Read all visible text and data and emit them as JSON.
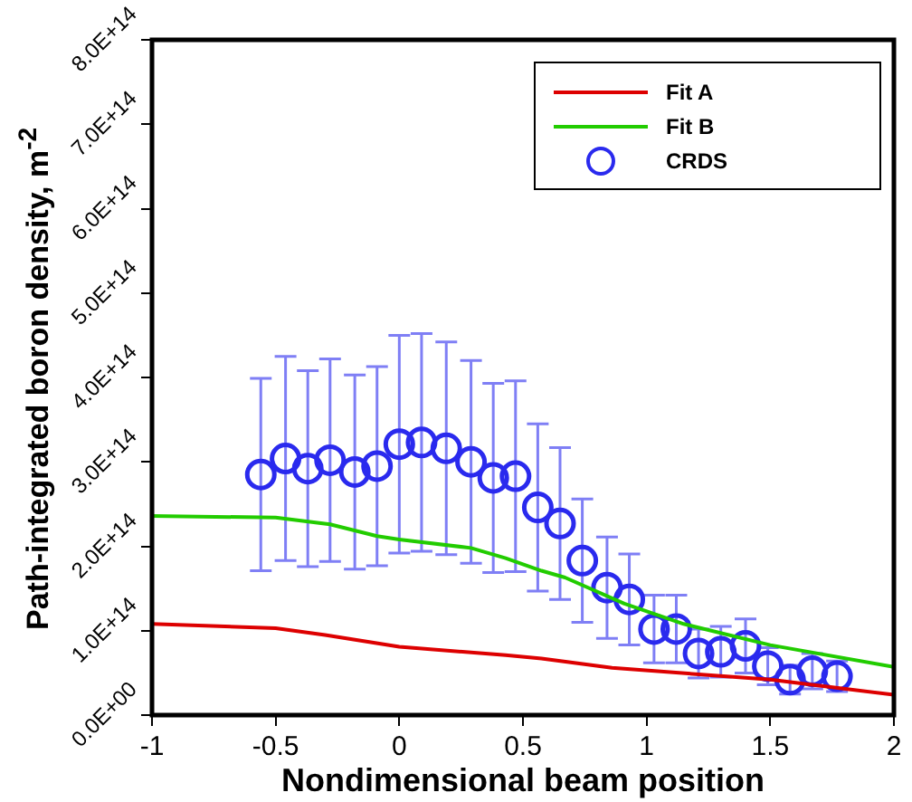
{
  "chart_data": {
    "type": "line",
    "xlabel": "Nondimensional beam position",
    "ylabel": "Path-integrated boron density, m$^{-2}$",
    "xlim": [
      -1,
      2
    ],
    "xticks": [
      -1,
      -0.5,
      0,
      0.5,
      1,
      1.5,
      2
    ],
    "ylim": [
      0,
      800000000000000.0
    ],
    "yticks": [
      {
        "value": 0,
        "label": "0.0E+00"
      },
      {
        "value": 100000000000000.0,
        "label": "1.0E+14"
      },
      {
        "value": 200000000000000.0,
        "label": "2.0E+14"
      },
      {
        "value": 300000000000000.0,
        "label": "3.0E+14"
      },
      {
        "value": 400000000000000.0,
        "label": "4.0E+14"
      },
      {
        "value": 500000000000000.0,
        "label": "5.0E+14"
      },
      {
        "value": 600000000000000.0,
        "label": "6.0E+14"
      },
      {
        "value": 700000000000000.0,
        "label": "7.0E+14"
      },
      {
        "value": 800000000000000.0,
        "label": "8.0E+14"
      }
    ],
    "legend": "top right",
    "series": [
      {
        "name": "Fit A",
        "type": "line",
        "color": "#dd0000",
        "marker": "none",
        "x": [
          -1,
          -0.5,
          -0.3,
          0,
          0.43,
          0.575,
          0.86,
          1.5,
          2
        ],
        "values": [
          108000000000000.0,
          103000000000000.0,
          95000000000000.0,
          81000000000000.0,
          71000000000000.0,
          67000000000000.0,
          56000000000000.0,
          42000000000000.0,
          24000000000000.0
        ]
      },
      {
        "name": "Fit B",
        "type": "line",
        "color": "#22cc00",
        "marker": "none",
        "x": [
          -1,
          -0.5,
          -0.28,
          -0.09,
          0,
          0.29,
          0.43,
          0.575,
          0.67,
          0.91,
          1.15,
          1.5,
          2
        ],
        "values": [
          236000000000000.0,
          234000000000000.0,
          226000000000000.0,
          212000000000000.0,
          208000000000000.0,
          198000000000000.0,
          186000000000000.0,
          171000000000000.0,
          163000000000000.0,
          132000000000000.0,
          108000000000000.0,
          83000000000000.0,
          57000000000000.0
        ]
      },
      {
        "name": "CRDS",
        "type": "scatter",
        "color": "#2a2aee",
        "marker": "circle",
        "x": [
          -0.56,
          -0.46,
          -0.37,
          -0.28,
          -0.18,
          -0.09,
          0,
          0.09,
          0.19,
          0.29,
          0.38,
          0.47,
          0.56,
          0.65,
          0.74,
          0.84,
          0.93,
          1.03,
          1.12,
          1.21,
          1.3,
          1.4,
          1.49,
          1.58,
          1.67,
          1.77
        ],
        "values": [
          285000000000000.0,
          304000000000000.0,
          292000000000000.0,
          302000000000000.0,
          288000000000000.0,
          295000000000000.0,
          321000000000000.0,
          323000000000000.0,
          316000000000000.0,
          300000000000000.0,
          281000000000000.0,
          283000000000000.0,
          246000000000000.0,
          227000000000000.0,
          183000000000000.0,
          151000000000000.0,
          137000000000000.0,
          102000000000000.0,
          102000000000000.0,
          73000000000000.0,
          75000000000000.0,
          82000000000000.0,
          58000000000000.0,
          42000000000000.0,
          52000000000000.0,
          46000000000000.0
        ],
        "errors": [
          114000000000000.0,
          121000000000000.0,
          116000000000000.0,
          120000000000000.0,
          115000000000000.0,
          118000000000000.0,
          129000000000000.0,
          129000000000000.0,
          126000000000000.0,
          120000000000000.0,
          112000000000000.0,
          113000000000000.0,
          99000000000000.0,
          90000000000000.0,
          73000000000000.0,
          60000000000000.0,
          54000000000000.0,
          40000000000000.0,
          40000000000000.0,
          29000000000000.0,
          30000000000000.0,
          32000000000000.0,
          22000000000000.0,
          17000000000000.0,
          21000000000000.0,
          18000000000000.0
        ]
      }
    ]
  }
}
